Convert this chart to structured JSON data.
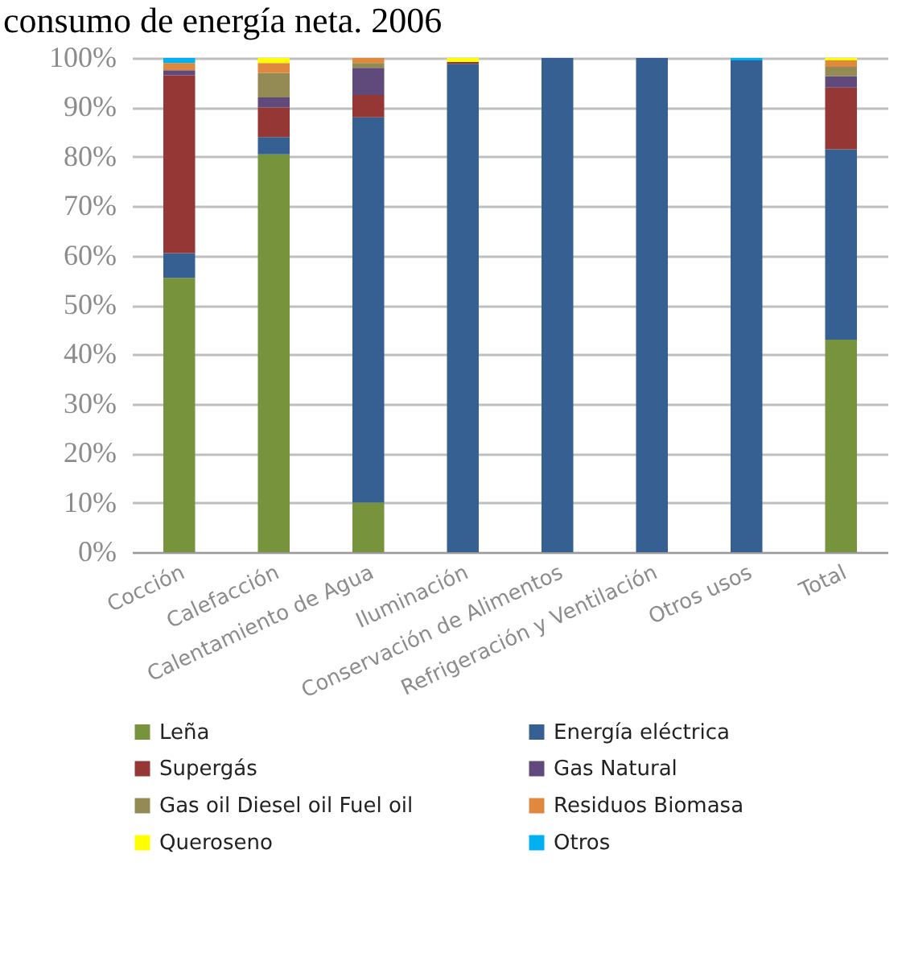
{
  "chart_data": {
    "type": "bar",
    "title": "consumo de energía neta. 2006",
    "stacked": true,
    "categories": [
      "Cocción",
      "Calefacción",
      "Calentamiento de Agua",
      "Iluminación",
      "Conservación de Alimentos",
      "Refrigeración y Ventilación",
      "Otros usos",
      "Total"
    ],
    "series": [
      {
        "name": "Leña",
        "color": "#77933c",
        "values": [
          55.5,
          80.5,
          10,
          null,
          null,
          null,
          null,
          43
        ]
      },
      {
        "name": "Energía eléctrica",
        "color": "#376092",
        "values": [
          5,
          3.5,
          78,
          98.8,
          100,
          100,
          99.5,
          38.5
        ]
      },
      {
        "name": "Supergás",
        "color": "#953735",
        "values": [
          36,
          6,
          4.5,
          0.4,
          null,
          null,
          null,
          12.5
        ]
      },
      {
        "name": "Gas Natural",
        "color": "#604a7b",
        "values": [
          1,
          2,
          5.5,
          null,
          null,
          null,
          null,
          2.3
        ]
      },
      {
        "name": "Gas oil Diesel oil Fuel oil",
        "color": "#948a54",
        "values": [
          null,
          5,
          1,
          null,
          null,
          null,
          null,
          1.9
        ]
      },
      {
        "name": "Residuos Biomasa",
        "color": "#e0883d",
        "values": [
          1.5,
          2,
          1,
          null,
          null,
          null,
          null,
          1.3
        ]
      },
      {
        "name": "Queroseno",
        "color": "#ffff00",
        "values": [
          null,
          1,
          null,
          0.8,
          null,
          null,
          null,
          0.5
        ]
      },
      {
        "name": "Otros",
        "color": "#00b0f0",
        "values": [
          1,
          null,
          null,
          null,
          null,
          null,
          0.5,
          null
        ]
      }
    ],
    "ylim": [
      0,
      100
    ],
    "yticks": [
      {
        "value": 0,
        "label": "0%"
      },
      {
        "value": 10,
        "label": "10%"
      },
      {
        "value": 20,
        "label": "20%"
      },
      {
        "value": 30,
        "label": "30%"
      },
      {
        "value": 40,
        "label": "40%"
      },
      {
        "value": 50,
        "label": "50%"
      },
      {
        "value": 60,
        "label": "60%"
      },
      {
        "value": 70,
        "label": "70%"
      },
      {
        "value": 80,
        "label": "80%"
      },
      {
        "value": 90,
        "label": "90%"
      },
      {
        "value": 100,
        "label": "100%"
      }
    ],
    "grid": "y",
    "legend": "bottom"
  }
}
